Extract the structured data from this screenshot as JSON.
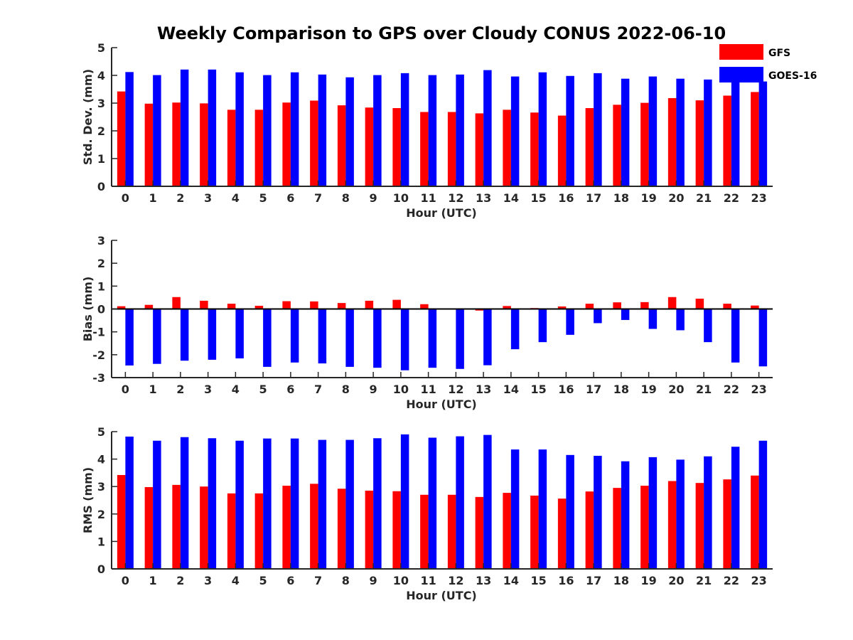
{
  "title": "Weekly Comparison to GPS over Cloudy CONUS 2022-06-10",
  "colors": {
    "gfs": "#ff0000",
    "goes": "#0000ff",
    "axis": "#262626"
  },
  "legend": {
    "placement": "top-right",
    "items": [
      "GFS",
      "GOES-16"
    ]
  },
  "chart_data": [
    {
      "type": "bar",
      "xlabel": "Hour (UTC)",
      "ylabel": "Std. Dev. (mm)",
      "ylim": [
        0,
        5
      ],
      "yticks": [
        "0",
        "1",
        "2",
        "3",
        "4",
        "5"
      ],
      "categories": [
        "0",
        "1",
        "2",
        "3",
        "4",
        "5",
        "6",
        "7",
        "8",
        "9",
        "10",
        "11",
        "12",
        "13",
        "14",
        "15",
        "16",
        "17",
        "18",
        "19",
        "20",
        "21",
        "22",
        "23"
      ],
      "series": [
        {
          "name": "GFS",
          "values": [
            3.42,
            2.98,
            3.02,
            2.99,
            2.76,
            2.76,
            3.02,
            3.09,
            2.92,
            2.84,
            2.82,
            2.68,
            2.68,
            2.63,
            2.76,
            2.66,
            2.55,
            2.82,
            2.94,
            3.01,
            3.18,
            3.1,
            3.27,
            3.4
          ]
        },
        {
          "name": "GOES-16",
          "values": [
            4.12,
            4.01,
            4.21,
            4.21,
            4.11,
            4.01,
            4.11,
            4.03,
            3.93,
            4.01,
            4.08,
            4.01,
            4.03,
            4.19,
            3.96,
            4.11,
            3.98,
            4.08,
            3.88,
            3.96,
            3.88,
            3.85,
            3.78,
            3.78
          ]
        }
      ]
    },
    {
      "type": "bar",
      "xlabel": "Hour (UTC)",
      "ylabel": "Bias (mm)",
      "ylim": [
        -3,
        3
      ],
      "yticks": [
        "-3",
        "-2",
        "-1",
        "0",
        "1",
        "2",
        "3"
      ],
      "categories": [
        "0",
        "1",
        "2",
        "3",
        "4",
        "5",
        "6",
        "7",
        "8",
        "9",
        "10",
        "11",
        "12",
        "13",
        "14",
        "15",
        "16",
        "17",
        "18",
        "19",
        "20",
        "21",
        "22",
        "23"
      ],
      "series": [
        {
          "name": "GFS",
          "values": [
            0.12,
            0.18,
            0.52,
            0.36,
            0.23,
            0.14,
            0.34,
            0.33,
            0.26,
            0.36,
            0.4,
            0.21,
            0.0,
            -0.07,
            0.13,
            0.04,
            0.11,
            0.23,
            0.29,
            0.3,
            0.52,
            0.45,
            0.23,
            0.15
          ]
        },
        {
          "name": "GOES-16",
          "values": [
            -2.47,
            -2.4,
            -2.26,
            -2.22,
            -2.16,
            -2.53,
            -2.34,
            -2.38,
            -2.53,
            -2.57,
            -2.68,
            -2.57,
            -2.62,
            -2.46,
            -1.76,
            -1.45,
            -1.13,
            -0.62,
            -0.48,
            -0.87,
            -0.93,
            -1.45,
            -2.34,
            -2.51
          ]
        }
      ]
    },
    {
      "type": "bar",
      "xlabel": "Hour (UTC)",
      "ylabel": "RMS (mm)",
      "ylim": [
        0,
        5
      ],
      "yticks": [
        "0",
        "1",
        "2",
        "3",
        "4",
        "5"
      ],
      "categories": [
        "0",
        "1",
        "2",
        "3",
        "4",
        "5",
        "6",
        "7",
        "8",
        "9",
        "10",
        "11",
        "12",
        "13",
        "14",
        "15",
        "16",
        "17",
        "18",
        "19",
        "20",
        "21",
        "22",
        "23"
      ],
      "series": [
        {
          "name": "GFS",
          "values": [
            3.42,
            2.98,
            3.06,
            3.0,
            2.75,
            2.75,
            3.03,
            3.1,
            2.92,
            2.85,
            2.83,
            2.7,
            2.7,
            2.62,
            2.77,
            2.67,
            2.56,
            2.82,
            2.95,
            3.03,
            3.2,
            3.13,
            3.26,
            3.4
          ]
        },
        {
          "name": "GOES-16",
          "values": [
            4.82,
            4.67,
            4.8,
            4.76,
            4.67,
            4.75,
            4.75,
            4.7,
            4.7,
            4.76,
            4.9,
            4.78,
            4.83,
            4.88,
            4.35,
            4.35,
            4.15,
            4.12,
            3.92,
            4.07,
            3.98,
            4.1,
            4.45,
            4.67
          ]
        }
      ]
    }
  ]
}
